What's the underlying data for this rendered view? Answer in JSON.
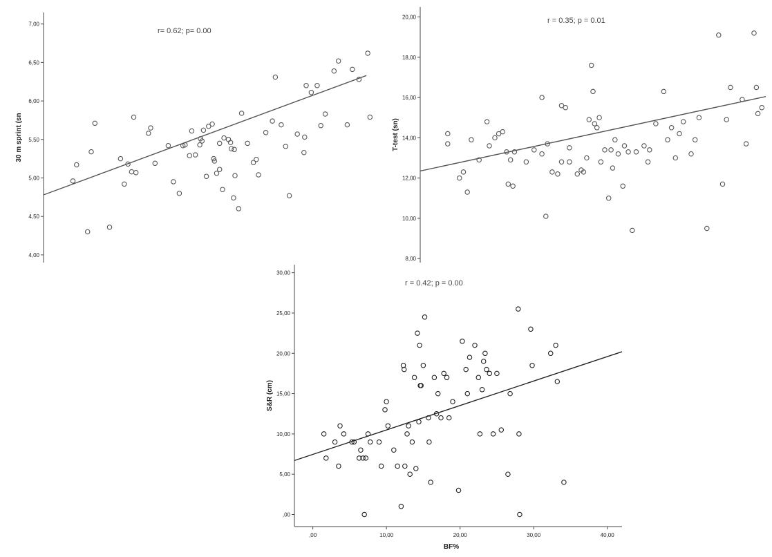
{
  "chart_data": [
    {
      "type": "scatter",
      "title": "",
      "xlabel": "",
      "ylabel": "30 m sprint (sn",
      "annotation": "r= 0.62; p= 0.00",
      "ylim": [
        3.9,
        7.15
      ],
      "xlim": [
        -2,
        42
      ],
      "yticks": [
        "4,00",
        "4,50",
        "5,00",
        "5,50",
        "6,00",
        "6,50",
        "7,00"
      ],
      "ytick_values": [
        4.0,
        4.5,
        5.0,
        5.5,
        6.0,
        6.5,
        7.0
      ],
      "trendline": {
        "x": [
          -2,
          42
        ],
        "y": [
          4.78,
          6.33
        ]
      },
      "color": "#555555",
      "points": {
        "x": [
          2.0,
          4.0,
          5.0,
          4.5,
          2.5,
          7.0,
          8.5,
          9.0,
          9.5,
          10.0,
          10.3,
          10.6,
          12.3,
          12.6,
          13.2,
          15.0,
          15.7,
          16.5,
          17.0,
          17.3,
          17.9,
          18.2,
          18.7,
          19.3,
          19.4,
          19.6,
          19.8,
          20.5,
          21.0,
          21.2,
          21.3,
          21.6,
          22.0,
          22.4,
          22.6,
          23.2,
          23.5,
          23.9,
          24.0,
          24.6,
          25.0,
          25.8,
          26.6,
          27.0,
          27.3,
          28.3,
          29.2,
          29.6,
          30.4,
          31.0,
          32.6,
          33.6,
          33.8,
          34.5,
          35.3,
          35.8,
          36.4,
          37.6,
          38.2,
          39.4,
          40.1,
          41.0,
          42.5,
          33.5,
          31.5,
          20.2,
          22.0,
          24.1,
          23.6,
          42.2
        ],
        "y": [
          4.96,
          4.3,
          5.71,
          5.34,
          5.17,
          4.36,
          5.25,
          4.92,
          5.18,
          5.08,
          5.79,
          5.07,
          5.58,
          5.65,
          5.19,
          5.42,
          4.95,
          4.8,
          5.42,
          5.43,
          5.29,
          5.61,
          5.3,
          5.43,
          5.51,
          5.48,
          5.62,
          5.67,
          5.7,
          5.25,
          5.22,
          5.06,
          5.45,
          4.85,
          5.52,
          5.5,
          5.46,
          4.74,
          5.37,
          4.6,
          5.84,
          5.45,
          5.2,
          5.24,
          5.04,
          5.59,
          5.74,
          6.31,
          5.69,
          5.41,
          5.57,
          5.53,
          6.2,
          6.11,
          6.2,
          5.68,
          5.83,
          6.39,
          6.52,
          5.69,
          6.41,
          6.28,
          5.79,
          5.33,
          4.77,
          5.02,
          5.11,
          5.03,
          5.38,
          6.62
        ]
      }
    },
    {
      "type": "scatter",
      "title": "",
      "xlabel": "",
      "ylabel": "T-test (sn)",
      "annotation": "r = 0.35; p = 0.01",
      "ylim": [
        7.8,
        20.5
      ],
      "xlim": [
        -2,
        42
      ],
      "yticks": [
        "8,00",
        "10,00",
        "12,00",
        "14,00",
        "16,00",
        "18,00",
        "20,00"
      ],
      "ytick_values": [
        8,
        10,
        12,
        14,
        16,
        18,
        20
      ],
      "trendline": {
        "x": [
          -2,
          42
        ],
        "y": [
          12.35,
          16.05
        ]
      },
      "color": "#555555",
      "points": {
        "x": [
          1.5,
          1.5,
          3.0,
          3.5,
          4.5,
          4.0,
          5.5,
          6.5,
          6.8,
          7.5,
          8.0,
          8.5,
          9.0,
          9.2,
          9.5,
          9.8,
          10.0,
          11.5,
          12.5,
          13.5,
          13.5,
          14.0,
          14.2,
          14.8,
          15.5,
          16.0,
          16.0,
          16.5,
          17.0,
          17.0,
          18.0,
          18.5,
          18.8,
          19.2,
          19.5,
          19.8,
          20.0,
          20.2,
          20.5,
          20.8,
          21.0,
          21.5,
          22.0,
          22.3,
          22.5,
          22.8,
          23.2,
          23.8,
          24.0,
          24.5,
          25.0,
          25.5,
          26.5,
          27.0,
          27.2,
          28.0,
          29.0,
          29.5,
          30.0,
          30.5,
          31.0,
          31.5,
          32.5,
          33.0,
          33.5,
          34.5,
          36.0,
          36.5,
          37.0,
          37.5,
          39.0,
          39.5,
          40.5,
          41.5,
          40.8,
          41.0
        ],
        "y": [
          14.2,
          13.7,
          12.0,
          12.3,
          13.9,
          11.3,
          12.9,
          14.8,
          13.6,
          14.0,
          14.2,
          14.3,
          13.3,
          11.7,
          12.9,
          11.6,
          13.3,
          12.8,
          13.4,
          13.2,
          16.0,
          10.1,
          13.7,
          12.3,
          12.2,
          12.8,
          15.6,
          15.5,
          12.8,
          13.5,
          12.2,
          12.4,
          12.3,
          13.0,
          14.9,
          17.6,
          16.3,
          14.7,
          14.5,
          15.0,
          12.8,
          13.4,
          11.0,
          13.4,
          12.5,
          13.9,
          13.2,
          11.6,
          13.6,
          13.3,
          9.4,
          13.3,
          13.6,
          12.8,
          13.4,
          14.7,
          16.3,
          13.9,
          14.5,
          13.0,
          14.2,
          14.8,
          13.2,
          13.9,
          15.0,
          9.5,
          19.1,
          11.7,
          14.9,
          16.5,
          15.9,
          13.7,
          19.2,
          15.5,
          16.5,
          15.2
        ]
      }
    },
    {
      "type": "scatter",
      "title": "",
      "xlabel": "BF%",
      "ylabel": "S&R (cm)",
      "annotation": "r = 0.42; p = 0.00",
      "ylim": [
        -1.5,
        31
      ],
      "xlim": [
        -2.5,
        42
      ],
      "xticks": [
        ",00",
        "10,00",
        "20,00",
        "30,00",
        "40,00"
      ],
      "xtick_values": [
        0,
        10,
        20,
        30,
        40
      ],
      "yticks": [
        ",00",
        "5,00",
        "10,00",
        "15,00",
        "20,00",
        "25,00",
        "30,00"
      ],
      "ytick_values": [
        0,
        5,
        10,
        15,
        20,
        25,
        30
      ],
      "trendline": {
        "x": [
          -2.5,
          42
        ],
        "y": [
          6.7,
          20.2
        ]
      },
      "color": "#222222",
      "points": {
        "x": [
          1.5,
          1.8,
          3.0,
          3.5,
          3.7,
          4.2,
          5.3,
          5.6,
          6.3,
          6.5,
          6.8,
          7.0,
          7.2,
          7.5,
          7.8,
          9.0,
          9.3,
          9.8,
          10.0,
          10.2,
          11.0,
          11.5,
          12.0,
          12.3,
          12.4,
          12.5,
          12.8,
          13.0,
          13.2,
          13.5,
          13.8,
          14.0,
          14.2,
          14.4,
          14.5,
          14.6,
          14.7,
          15.0,
          15.2,
          15.7,
          15.8,
          16.0,
          16.5,
          16.8,
          17.0,
          17.4,
          17.8,
          18.2,
          18.5,
          19.0,
          19.8,
          20.3,
          20.8,
          21.0,
          21.3,
          22.0,
          22.5,
          22.7,
          23.0,
          23.2,
          23.4,
          23.6,
          24.0,
          24.5,
          25.0,
          25.6,
          26.5,
          26.8,
          27.9,
          28.0,
          28.1,
          29.6,
          29.8,
          32.3,
          33.0,
          33.2,
          34.1
        ],
        "y": [
          10.0,
          7.0,
          9.0,
          6.0,
          11.0,
          10.0,
          9.0,
          9.0,
          7.0,
          8.0,
          7.0,
          0.0,
          7.0,
          10.0,
          9.0,
          9.0,
          6.0,
          13.0,
          14.0,
          11.0,
          8.0,
          6.0,
          1.0,
          18.5,
          18.0,
          6.0,
          10.0,
          11.0,
          5.0,
          9.0,
          17.0,
          5.7,
          22.5,
          11.5,
          21.0,
          16.0,
          16.0,
          18.5,
          24.5,
          12.0,
          9.0,
          4.0,
          17.0,
          12.5,
          15.0,
          12.0,
          17.5,
          17.0,
          12.0,
          14.0,
          3.0,
          21.5,
          18.0,
          15.0,
          19.5,
          21.0,
          17.0,
          10.0,
          15.5,
          19.0,
          20.0,
          18.0,
          17.5,
          10.0,
          17.5,
          10.5,
          5.0,
          15.0,
          25.5,
          10.0,
          0.0,
          23.0,
          18.5,
          20.0,
          21.0,
          16.5,
          4.0
        ]
      }
    }
  ]
}
